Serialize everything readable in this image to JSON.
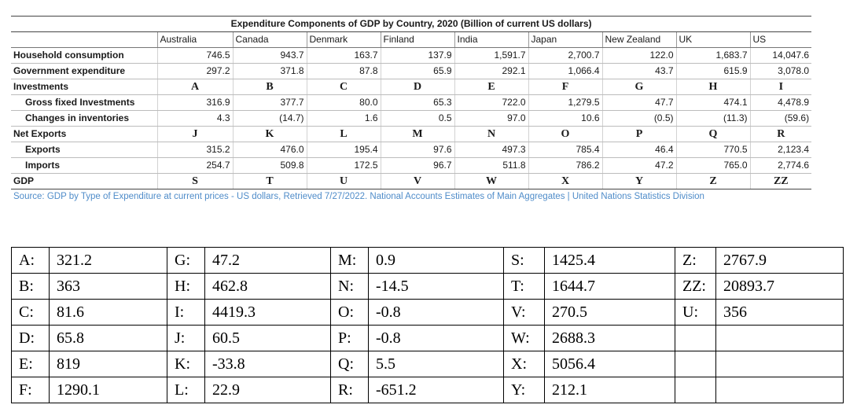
{
  "table": {
    "title": "Expenditure Components of GDP by Country, 2020 (Billion of current US dollars)",
    "columns": [
      "",
      "Australia",
      "Canada",
      "Denmark",
      "Finland",
      "India",
      "Japan",
      "New Zealand",
      "UK",
      "US"
    ],
    "rows": [
      {
        "label": "Household consumption",
        "kind": "num",
        "cells": [
          "746.5",
          "943.7",
          "163.7",
          "137.9",
          "1,591.7",
          "2,700.7",
          "122.0",
          "1,683.7",
          "14,047.6"
        ]
      },
      {
        "label": "Government expenditure",
        "kind": "num",
        "cells": [
          "297.2",
          "371.8",
          "87.8",
          "65.9",
          "292.1",
          "1,066.4",
          "43.7",
          "615.9",
          "3,078.0"
        ]
      },
      {
        "label": "Investments",
        "kind": "letter",
        "cells": [
          "A",
          "B",
          "C",
          "D",
          "E",
          "F",
          "G",
          "H",
          "I"
        ]
      },
      {
        "label": "Gross fixed Investments",
        "kind": "num",
        "indent": true,
        "cells": [
          "316.9",
          "377.7",
          "80.0",
          "65.3",
          "722.0",
          "1,279.5",
          "47.7",
          "474.1",
          "4,478.9"
        ]
      },
      {
        "label": "Changes in inventories",
        "kind": "num",
        "indent": true,
        "cells": [
          "4.3",
          "(14.7)",
          "1.6",
          "0.5",
          "97.0",
          "10.6",
          "(0.5)",
          "(11.3)",
          "(59.6)"
        ]
      },
      {
        "label": "Net Exports",
        "kind": "letter",
        "cells": [
          "J",
          "K",
          "L",
          "M",
          "N",
          "O",
          "P",
          "Q",
          "R"
        ]
      },
      {
        "label": "Exports",
        "kind": "num",
        "indent": true,
        "cells": [
          "315.2",
          "476.0",
          "195.4",
          "97.6",
          "497.3",
          "785.4",
          "46.4",
          "770.5",
          "2,123.4"
        ]
      },
      {
        "label": "Imports",
        "kind": "num",
        "indent": true,
        "cells": [
          "254.7",
          "509.8",
          "172.5",
          "96.7",
          "511.8",
          "786.2",
          "47.2",
          "765.0",
          "2,774.6"
        ]
      },
      {
        "label": "GDP",
        "kind": "letter",
        "cells": [
          "S",
          "T",
          "U",
          "V",
          "W",
          "X",
          "Y",
          "Z",
          "ZZ"
        ]
      }
    ],
    "source": "Source: GDP by Type of Expenditure at current prices - US dollars, Retrieved 7/27/2022. National Accounts Estimates of Main Aggregates | United Nations Statistics Division"
  },
  "key": {
    "rows": [
      [
        [
          "A:",
          "321.2"
        ],
        [
          "G:",
          "47.2"
        ],
        [
          "M:",
          "0.9"
        ],
        [
          "S:",
          "1425.4"
        ],
        [
          "Z:",
          "2767.9"
        ]
      ],
      [
        [
          "B:",
          "363"
        ],
        [
          "H:",
          "462.8"
        ],
        [
          "N:",
          "-14.5"
        ],
        [
          "T:",
          "1644.7"
        ],
        [
          "ZZ:",
          "20893.7"
        ]
      ],
      [
        [
          "C:",
          "81.6"
        ],
        [
          "I:",
          "4419.3"
        ],
        [
          "O:",
          "-0.8"
        ],
        [
          "V:",
          "270.5"
        ],
        [
          "U:",
          "356"
        ]
      ],
      [
        [
          "D:",
          "65.8"
        ],
        [
          "J:",
          "60.5"
        ],
        [
          "P:",
          "-0.8"
        ],
        [
          "W:",
          "2688.3"
        ],
        [
          "",
          ""
        ]
      ],
      [
        [
          "E:",
          "819"
        ],
        [
          "K:",
          "-33.8"
        ],
        [
          "Q:",
          "5.5"
        ],
        [
          "X:",
          "5056.4"
        ],
        [
          "",
          ""
        ]
      ],
      [
        [
          "F:",
          "1290.1"
        ],
        [
          "L:",
          "22.9"
        ],
        [
          "R:",
          "-651.2"
        ],
        [
          "Y:",
          "212.1"
        ],
        [
          "",
          ""
        ]
      ]
    ]
  }
}
